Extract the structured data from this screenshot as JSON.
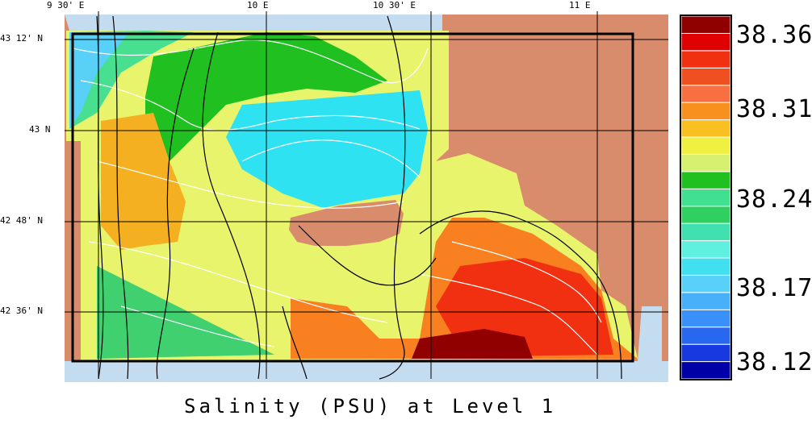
{
  "caption": "Salinity (PSU) at Level 1",
  "longitude_labels": [
    "9 30' E",
    "10 E",
    "10 30' E",
    "11 E"
  ],
  "latitude_labels": [
    "43 12' N",
    "43 N",
    "42 48' N",
    "42 36' N"
  ],
  "colorbar": {
    "tick_labels": [
      "38.36",
      "38.31",
      "38.24",
      "38.17",
      "38.12"
    ],
    "colors": [
      "#0000a8",
      "#1838e0",
      "#2868f0",
      "#3890f8",
      "#48b0f8",
      "#58d0f8",
      "#40e0f0",
      "#60f0e0",
      "#40e0b0",
      "#30d060",
      "#40e090",
      "#20c020",
      "#d8f070",
      "#f0f040",
      "#f8c020",
      "#f89020",
      "#f87040",
      "#f05020",
      "#f03010",
      "#e00000",
      "#900000"
    ]
  },
  "colors": {
    "land": "#d88c6c",
    "shelf": "#c4dcf0",
    "frame": "#000000",
    "grid": "#000000"
  }
}
